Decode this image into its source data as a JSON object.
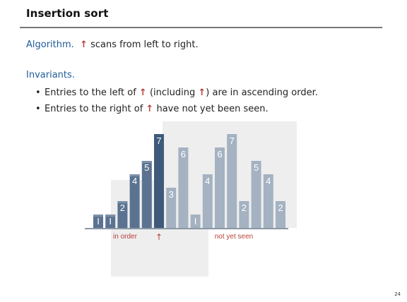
{
  "title": "Insertion sort",
  "algorithm": {
    "label": "Algorithm.",
    "arrow": "↑",
    "text": "scans from left to right."
  },
  "invariants": {
    "heading": "Invariants.",
    "bullets": [
      {
        "pre": "Entries to the left of",
        "arrow1": "↑",
        "mid": "(including",
        "arrow2": "↑",
        "post": ") are in ascending order."
      },
      {
        "pre": "Entries to the right of",
        "arrow1": "↑",
        "post": "have not yet been seen."
      }
    ]
  },
  "diagram": {
    "bars": [
      {
        "label": "I",
        "value": 1,
        "state": "sorted"
      },
      {
        "label": "I",
        "value": 1,
        "state": "sorted"
      },
      {
        "label": "2",
        "value": 2,
        "state": "sorted"
      },
      {
        "label": "4",
        "value": 4,
        "state": "sorted"
      },
      {
        "label": "5",
        "value": 5,
        "state": "sorted"
      },
      {
        "label": "7",
        "value": 7,
        "state": "current"
      },
      {
        "label": "3",
        "value": 3,
        "state": "unseen"
      },
      {
        "label": "6",
        "value": 6,
        "state": "unseen"
      },
      {
        "label": "I",
        "value": 1,
        "state": "unseen"
      },
      {
        "label": "4",
        "value": 4,
        "state": "unseen"
      },
      {
        "label": "6",
        "value": 6,
        "state": "unseen"
      },
      {
        "label": "7",
        "value": 7,
        "state": "unseen"
      },
      {
        "label": "2",
        "value": 2,
        "state": "unseen"
      },
      {
        "label": "5",
        "value": 5,
        "state": "unseen"
      },
      {
        "label": "4",
        "value": 4,
        "state": "unseen"
      },
      {
        "label": "2",
        "value": 2,
        "state": "unseen"
      }
    ],
    "in_order_label": "in order",
    "not_seen_label": "not yet seen",
    "pointer_arrow": "↑",
    "colors": {
      "sorted": "#5b7391",
      "current": "#3f5a7a",
      "unseen": "#a4b2c2",
      "sorted_top": "#7c90a8",
      "label": "#b8403a",
      "panel": "#eeeeee",
      "baseline": "#8a97a6"
    }
  },
  "page_number": "24"
}
